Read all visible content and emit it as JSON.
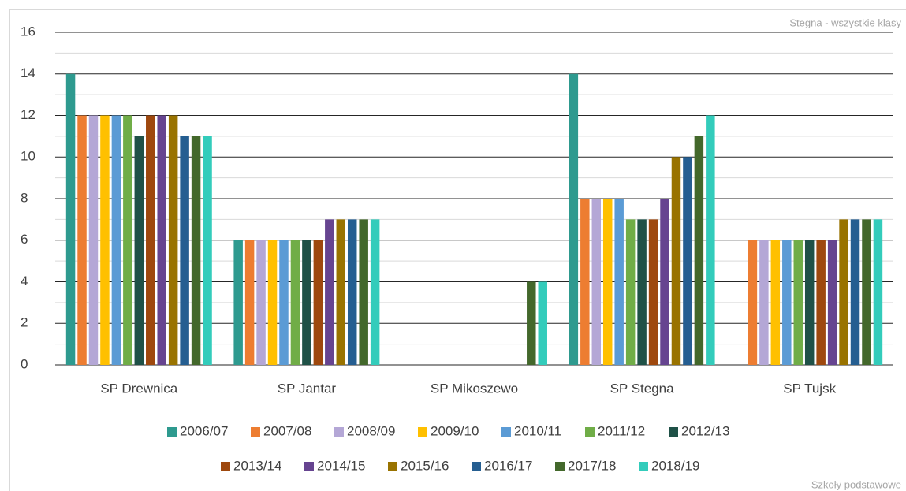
{
  "chart_data": {
    "type": "bar",
    "title": "Stegna - wszystkie klasy",
    "subtitle": "Szkoły podstawowe",
    "categories": [
      "SP Drewnica",
      "SP Jantar",
      "SP Mikoszewo",
      "SP Stegna",
      "SP Tujsk"
    ],
    "series": [
      {
        "name": "2006/07",
        "color": "#2e9a8f",
        "values": [
          14,
          6,
          0,
          14,
          0
        ]
      },
      {
        "name": "2007/08",
        "color": "#ed7d31",
        "values": [
          12,
          6,
          0,
          8,
          6
        ]
      },
      {
        "name": "2008/09",
        "color": "#b4a7d6",
        "values": [
          12,
          6,
          0,
          8,
          6
        ]
      },
      {
        "name": "2009/10",
        "color": "#ffc000",
        "values": [
          12,
          6,
          0,
          8,
          6
        ]
      },
      {
        "name": "2010/11",
        "color": "#5b9bd5",
        "values": [
          12,
          6,
          0,
          8,
          6
        ]
      },
      {
        "name": "2011/12",
        "color": "#70ad47",
        "values": [
          12,
          6,
          0,
          7,
          6
        ]
      },
      {
        "name": "2012/13",
        "color": "#1f5147",
        "values": [
          11,
          6,
          0,
          7,
          6
        ]
      },
      {
        "name": "2013/14",
        "color": "#9e480e",
        "values": [
          12,
          6,
          0,
          7,
          6
        ]
      },
      {
        "name": "2014/15",
        "color": "#664490",
        "values": [
          12,
          7,
          0,
          8,
          6
        ]
      },
      {
        "name": "2015/16",
        "color": "#997300",
        "values": [
          12,
          7,
          0,
          10,
          7
        ]
      },
      {
        "name": "2016/17",
        "color": "#255e91",
        "values": [
          11,
          7,
          0,
          10,
          7
        ]
      },
      {
        "name": "2017/18",
        "color": "#43682b",
        "values": [
          11,
          7,
          4,
          11,
          7
        ]
      },
      {
        "name": "2018/19",
        "color": "#33ccbb",
        "values": [
          11,
          7,
          4,
          12,
          7
        ]
      }
    ],
    "ylim": [
      0,
      16
    ],
    "yticks": [
      0,
      2,
      4,
      6,
      8,
      10,
      12,
      14,
      16
    ],
    "grid": true
  }
}
